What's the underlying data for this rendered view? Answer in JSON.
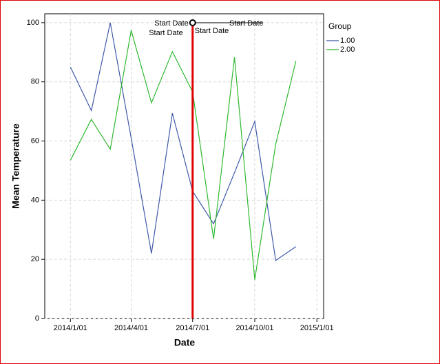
{
  "chart_data": {
    "type": "line",
    "x_label": "Date",
    "y_label": "Mean Temperature",
    "x": [
      "2014-01-01",
      "2014-02-01",
      "2014-03-01",
      "2014-04-01",
      "2014-05-01",
      "2014-06-01",
      "2014-07-01",
      "2014-08-01",
      "2014-09-01",
      "2014-10-01",
      "2014-11-01",
      "2014-12-01"
    ],
    "series": [
      {
        "name": "1.00",
        "color": "#3e58a8",
        "values": [
          85,
          70.3,
          100,
          61,
          22,
          69.4,
          43,
          32,
          49.3,
          66.6,
          19.6,
          24.3
        ]
      },
      {
        "name": "2.00",
        "color": "#2eb82e",
        "values": [
          53.5,
          67.3,
          57.2,
          97.4,
          72.9,
          90.2,
          76.6,
          26.9,
          88.3,
          13.1,
          58.9,
          87.1
        ]
      }
    ],
    "legend_title": "Group",
    "legend_position": "right",
    "xlim": [
      "2013-11-24",
      "2015-01-11"
    ],
    "xticks": [
      {
        "value": "2014-01-01",
        "label": "2014/1/01"
      },
      {
        "value": "2014-04-01",
        "label": "2014/4/01"
      },
      {
        "value": "2014-07-01",
        "label": "2014/7/01"
      },
      {
        "value": "2014-10-01",
        "label": "2014/10/01"
      },
      {
        "value": "2015-01-01",
        "label": "2015/1/01"
      }
    ],
    "ylim": [
      0,
      103
    ],
    "yticks": [
      0,
      20,
      40,
      60,
      80,
      100
    ],
    "grid": true,
    "reference_line": {
      "x": "2014-07-01",
      "color": "#e00000"
    },
    "annotations": [
      "Start Date",
      "Start Date",
      "Start Date",
      "Start Date"
    ]
  }
}
